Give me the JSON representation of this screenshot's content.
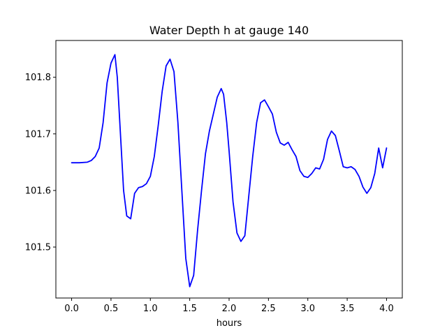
{
  "chart_data": {
    "type": "line",
    "title": "Water Depth h at gauge 140",
    "xlabel": "hours",
    "ylabel": "",
    "xlim": [
      -0.2,
      4.2
    ],
    "ylim": [
      101.41,
      101.865
    ],
    "xticks": [
      0.0,
      0.5,
      1.0,
      1.5,
      2.0,
      2.5,
      3.0,
      3.5,
      4.0
    ],
    "xtick_labels": [
      "0.0",
      "0.5",
      "1.0",
      "1.5",
      "2.0",
      "2.5",
      "3.0",
      "3.5",
      "4.0"
    ],
    "yticks": [
      101.5,
      101.6,
      101.7,
      101.8
    ],
    "ytick_labels": [
      "101.5",
      "101.6",
      "101.7",
      "101.8"
    ],
    "grid": false,
    "series": [
      {
        "color": "#0000ff",
        "x": [
          0.0,
          0.1,
          0.2,
          0.25,
          0.3,
          0.35,
          0.4,
          0.45,
          0.5,
          0.55,
          0.58,
          0.62,
          0.66,
          0.7,
          0.75,
          0.8,
          0.85,
          0.9,
          0.95,
          1.0,
          1.05,
          1.1,
          1.15,
          1.2,
          1.25,
          1.3,
          1.35,
          1.4,
          1.45,
          1.5,
          1.55,
          1.6,
          1.65,
          1.7,
          1.75,
          1.8,
          1.85,
          1.9,
          1.93,
          1.97,
          2.0,
          2.05,
          2.1,
          2.15,
          2.2,
          2.25,
          2.3,
          2.35,
          2.4,
          2.45,
          2.5,
          2.55,
          2.6,
          2.65,
          2.7,
          2.75,
          2.8,
          2.85,
          2.9,
          2.95,
          3.0,
          3.05,
          3.1,
          3.15,
          3.2,
          3.25,
          3.3,
          3.35,
          3.4,
          3.45,
          3.5,
          3.55,
          3.6,
          3.65,
          3.7,
          3.75,
          3.8,
          3.85,
          3.9,
          3.95,
          4.0
        ],
        "y": [
          101.649,
          101.649,
          101.65,
          101.653,
          101.66,
          101.675,
          101.72,
          101.79,
          101.825,
          101.84,
          101.8,
          101.7,
          101.6,
          101.555,
          101.55,
          101.595,
          101.605,
          101.607,
          101.612,
          101.625,
          101.66,
          101.715,
          101.775,
          101.82,
          101.832,
          101.81,
          101.72,
          101.6,
          101.48,
          101.43,
          101.45,
          101.53,
          101.6,
          101.665,
          101.705,
          101.735,
          101.765,
          101.78,
          101.77,
          101.72,
          101.67,
          101.58,
          101.525,
          101.51,
          101.52,
          101.59,
          101.66,
          101.72,
          101.755,
          101.76,
          101.748,
          101.735,
          101.703,
          101.684,
          101.68,
          101.685,
          101.672,
          101.66,
          101.635,
          101.625,
          101.623,
          101.63,
          101.64,
          101.638,
          101.655,
          101.69,
          101.705,
          101.697,
          101.67,
          101.642,
          101.64,
          101.642,
          101.637,
          101.625,
          101.606,
          101.595,
          101.605,
          101.63,
          101.675,
          101.64,
          101.675
        ]
      }
    ]
  }
}
